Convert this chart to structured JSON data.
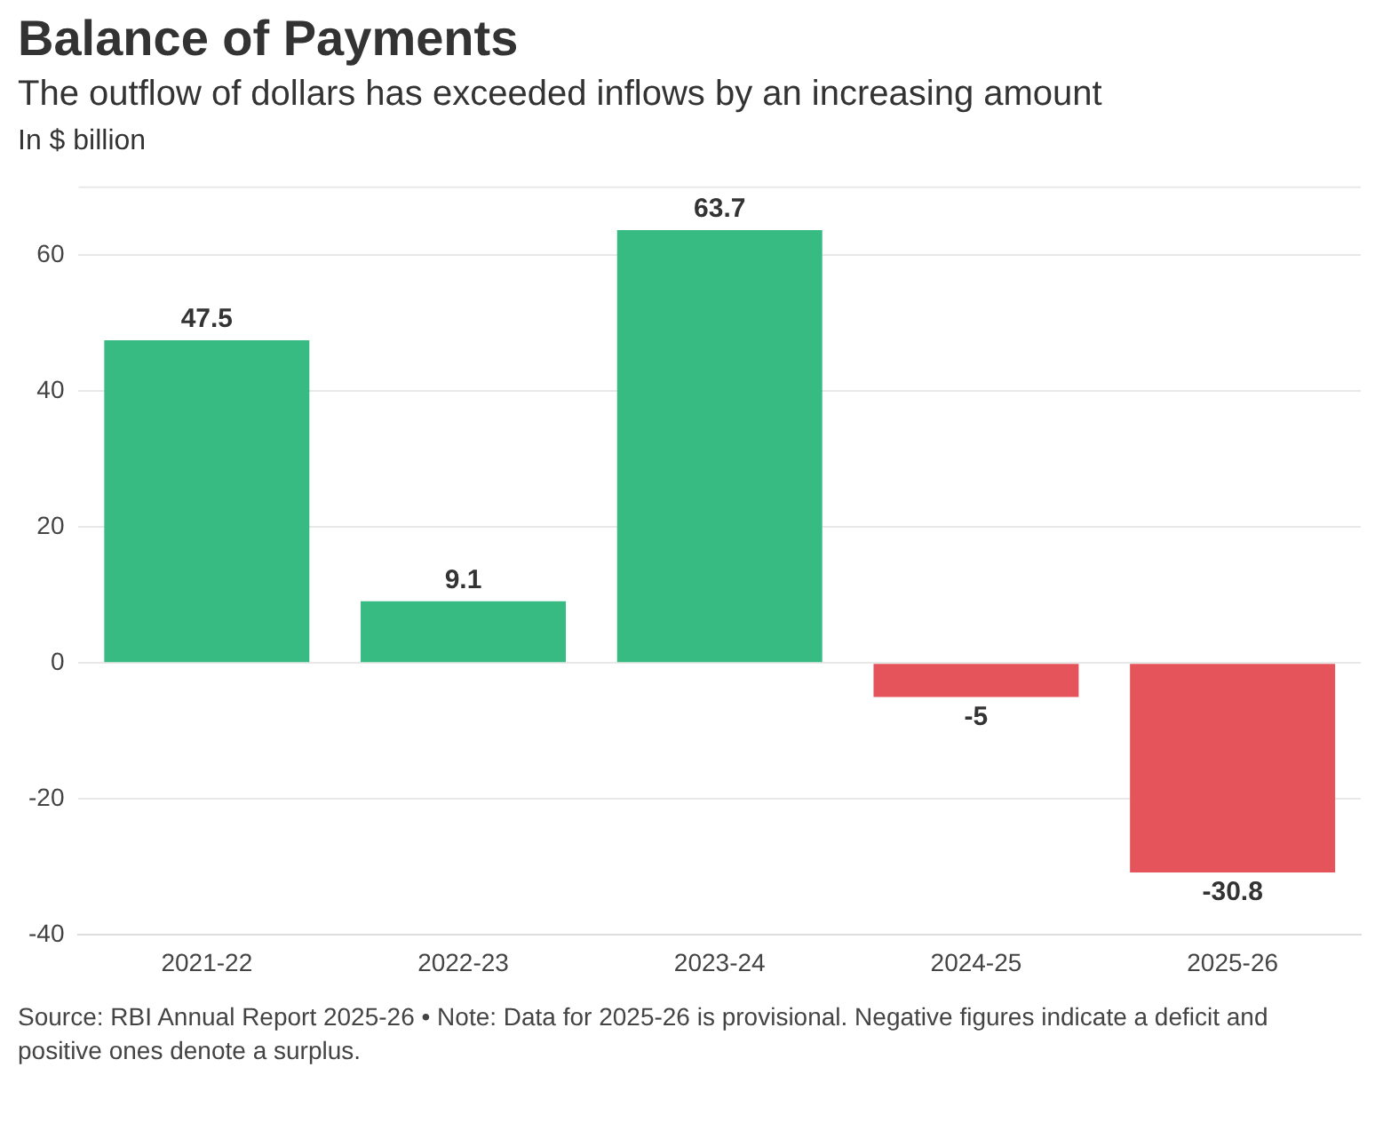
{
  "chart_data": {
    "type": "bar",
    "title": "Balance of Payments",
    "subtitle": "The outflow of dollars has exceeded inflows by an increasing amount",
    "ylabel": "In $ billion",
    "categories": [
      "2021-22",
      "2022-23",
      "2023-24",
      "2024-25",
      "2025-26"
    ],
    "values": [
      47.5,
      9.1,
      63.7,
      -5,
      -30.8
    ],
    "colors": [
      "#38bb83",
      "#38bb83",
      "#38bb83",
      "#e5545b",
      "#e5545b"
    ],
    "ylim": [
      -40,
      70
    ],
    "yticks": [
      -40,
      -20,
      0,
      20,
      40,
      60
    ],
    "grid": "y",
    "data_labels": true,
    "annotations": [
      "Source: RBI Annual Report 2025-26 • Note: Data for 2025-26 is provisional. Negative figures indicate a deficit and positive ones denote a surplus."
    ]
  }
}
